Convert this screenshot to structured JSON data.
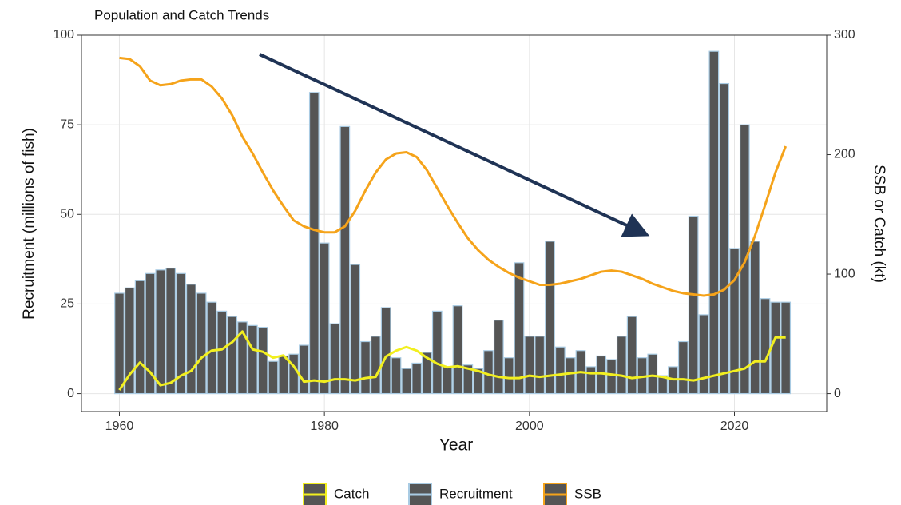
{
  "chart_data": {
    "type": "bar",
    "title": "Population and Catch Trends",
    "x_label": "Year",
    "y_label": "Recruitment (millions of fish)",
    "y2_label": "SSB or Catch (kt)",
    "x": [
      1960,
      1961,
      1962,
      1963,
      1964,
      1965,
      1966,
      1967,
      1968,
      1969,
      1970,
      1971,
      1972,
      1973,
      1974,
      1975,
      1976,
      1977,
      1978,
      1979,
      1980,
      1981,
      1982,
      1983,
      1984,
      1985,
      1986,
      1987,
      1988,
      1989,
      1990,
      1991,
      1992,
      1993,
      1994,
      1995,
      1996,
      1997,
      1998,
      1999,
      2000,
      2001,
      2002,
      2003,
      2004,
      2005,
      2006,
      2007,
      2008,
      2009,
      2010,
      2011,
      2012,
      2013,
      2014,
      2015,
      2016,
      2017,
      2018,
      2019,
      2020,
      2021,
      2022,
      2023,
      2024,
      2025
    ],
    "series": [
      {
        "name": "Catch",
        "type": "line",
        "axis": "y2",
        "color": "#f2ef1f",
        "values": [
          3,
          16,
          26,
          18,
          7,
          9,
          15,
          19,
          30,
          36,
          37,
          43,
          52,
          37,
          35,
          30,
          32,
          23,
          10,
          11,
          10,
          12,
          12,
          11,
          13,
          14,
          31,
          36,
          39,
          36,
          30,
          25,
          22,
          23,
          21,
          19,
          16,
          14,
          13,
          13,
          15,
          14,
          15,
          16,
          17,
          18,
          17,
          17,
          16,
          15,
          13,
          14,
          15,
          14,
          12,
          12,
          11,
          13,
          15,
          17,
          19,
          21,
          27,
          27,
          47,
          47
        ]
      },
      {
        "name": "Recruitment",
        "type": "bar",
        "color": "#555555",
        "edge_color": "#a9cbe3",
        "values": [
          28,
          29.5,
          31.5,
          33.5,
          34.5,
          35,
          33.5,
          30.5,
          28,
          25.5,
          23,
          21.5,
          20,
          19,
          18.5,
          9,
          10.5,
          11,
          13.5,
          84,
          42,
          19.5,
          74.5,
          36,
          14.5,
          16,
          24,
          10,
          7,
          8.5,
          11.5,
          23,
          7.5,
          24.5,
          8,
          7,
          12,
          20.5,
          10,
          36.5,
          16,
          16,
          42.5,
          13,
          10,
          12,
          7.5,
          10.5,
          9.5,
          16,
          21.5,
          10,
          11,
          5,
          7.5,
          14.5,
          49.5,
          22,
          95.5,
          86.5,
          40.5,
          75,
          42.5,
          26.5,
          25.5,
          25.5
        ]
      },
      {
        "name": "SSB",
        "type": "line",
        "axis": "y2",
        "color": "#f5a31a",
        "values": [
          281,
          280,
          274,
          262,
          258,
          259,
          262,
          263,
          263,
          257,
          247,
          233,
          215,
          201,
          185,
          170,
          157,
          145,
          140,
          137,
          135,
          135,
          140,
          153,
          170,
          185,
          196,
          201,
          202,
          198,
          187,
          172,
          157,
          143,
          130,
          120,
          112,
          106,
          101,
          97,
          94,
          91,
          91,
          92,
          94,
          96,
          99,
          102,
          103,
          102,
          99,
          96,
          92,
          89,
          86,
          84,
          83,
          82,
          83,
          87,
          95,
          110,
          132,
          158,
          185,
          207
        ]
      }
    ],
    "xlim": [
      1956.3,
      2029
    ],
    "xticks": [
      1960,
      1980,
      2000,
      2020
    ],
    "ylim": [
      -5,
      100
    ],
    "yticks": [
      0,
      25,
      50,
      75,
      100
    ],
    "y2lim": [
      -15,
      300
    ],
    "y2ticks": [
      0,
      100,
      200,
      300
    ],
    "grid": true,
    "legend": "bottom"
  }
}
